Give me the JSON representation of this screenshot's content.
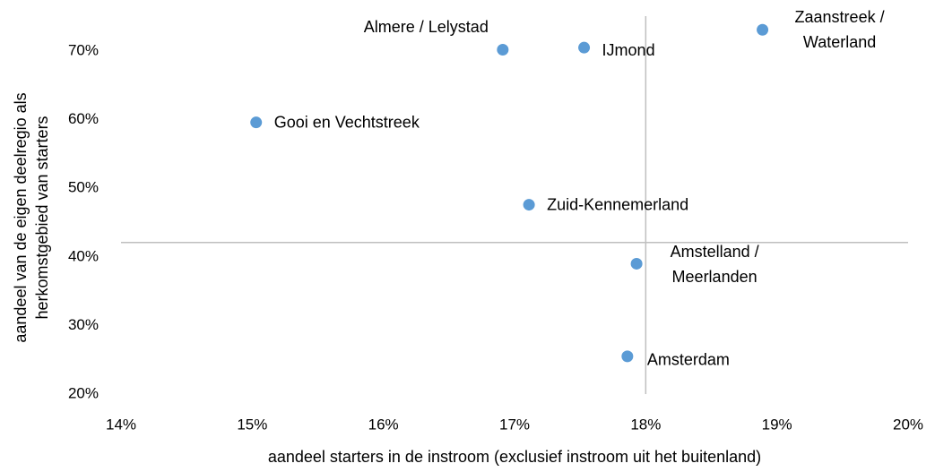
{
  "chart_data": {
    "type": "scatter",
    "x_label": "aandeel starters in de instroom (exclusief instroom uit het buitenland)",
    "y_label": [
      "aandeel van de eigen deelregio als",
      "herkomstgebied van starters"
    ],
    "color": "#5b9bd5",
    "series": [
      {
        "labels": [
          [
            "Almere / Lelystad"
          ],
          [
            "IJmond"
          ],
          [
            "Zaanstreek /",
            "Waterland"
          ],
          [
            "Gooi en Vechtstreek"
          ],
          [
            "Zuid-Kennemerland"
          ],
          [
            "Amstelland /",
            "Meerlanden"
          ],
          [
            "Amsterdam"
          ]
        ],
        "x": [
          16.91,
          17.53,
          18.89,
          15.03,
          17.11,
          17.93,
          17.86
        ],
        "values": [
          70.2,
          70.5,
          73.1,
          59.6,
          47.6,
          39.0,
          25.5
        ]
      }
    ],
    "reference_lines": {
      "x": 18.0,
      "y": 42.1
    },
    "xlim": [
      14,
      20
    ],
    "xticks": [
      {
        "value": 14,
        "label": "14%"
      },
      {
        "value": 15,
        "label": "15%"
      },
      {
        "value": 16,
        "label": "16%"
      },
      {
        "value": 17,
        "label": "17%"
      },
      {
        "value": 18,
        "label": "18%"
      },
      {
        "value": 19,
        "label": "19%"
      },
      {
        "value": 20,
        "label": "20%"
      }
    ],
    "ylim": [
      20,
      70
    ],
    "yticks": [
      {
        "value": 20,
        "label": "20%"
      },
      {
        "value": 30,
        "label": "30%"
      },
      {
        "value": 40,
        "label": "40%"
      },
      {
        "value": 50,
        "label": "50%"
      },
      {
        "value": 60,
        "label": "60%"
      },
      {
        "value": 70,
        "label": "70%"
      }
    ],
    "grid": false
  }
}
